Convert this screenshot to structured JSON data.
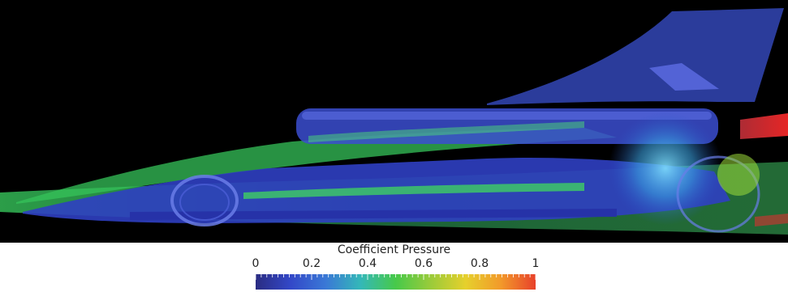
{
  "legend": {
    "title": "Coefficient Pressure",
    "ticks": [
      "0",
      "0.2",
      "0.4",
      "0.6",
      "0.8",
      "1"
    ],
    "range": [
      0,
      1
    ],
    "colormap": [
      "#2a2c82",
      "#3348c8",
      "#3a78d6",
      "#34b8b8",
      "#47c94a",
      "#9acb3a",
      "#e6d02c",
      "#f29a2a",
      "#e8412a"
    ]
  },
  "scene": {
    "background": "#000000",
    "body_color": "#3a4fcf",
    "flow_color": "#3fd15a"
  }
}
